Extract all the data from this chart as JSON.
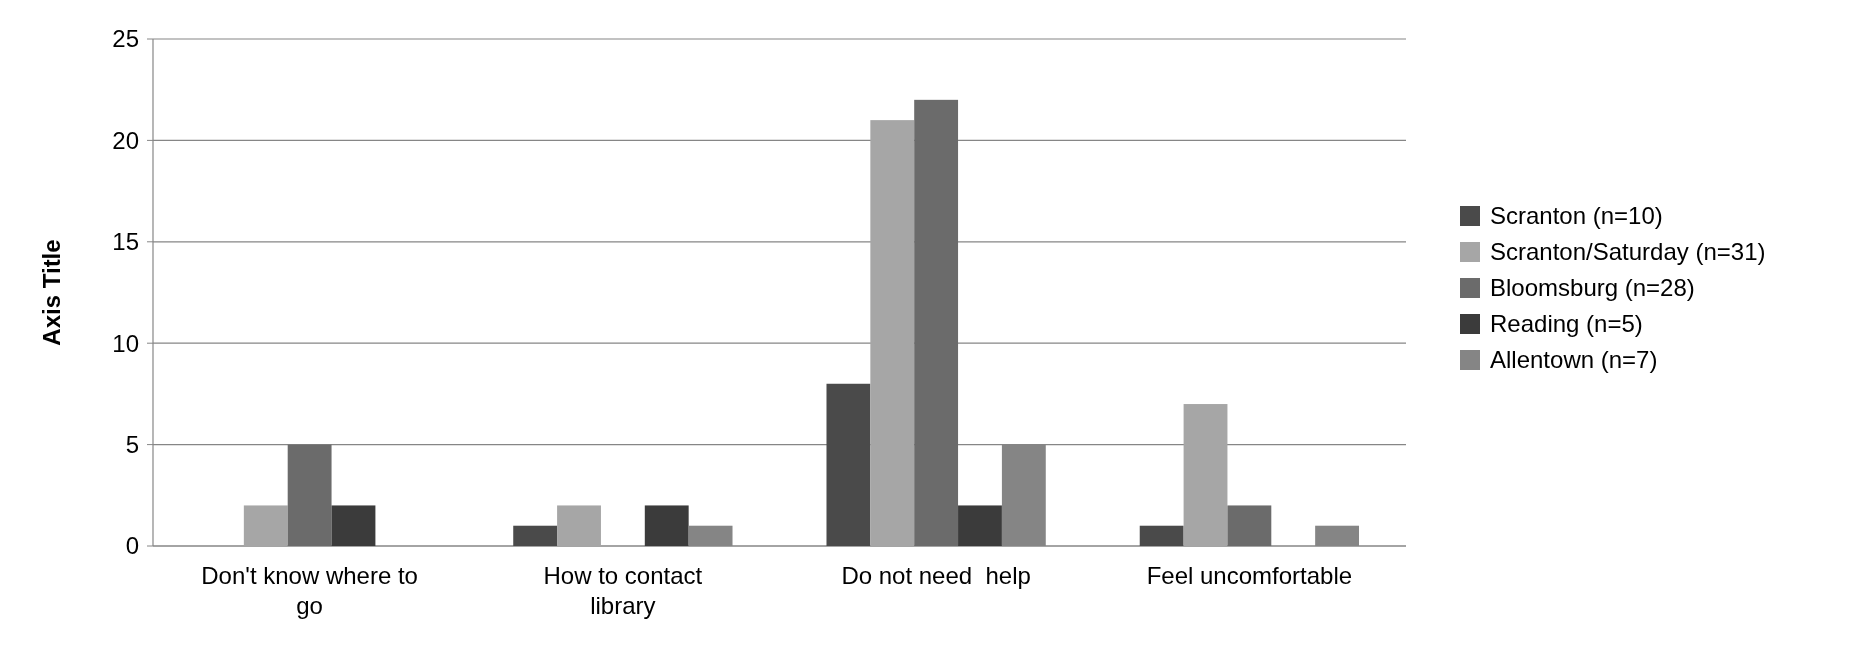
{
  "chart_data": {
    "type": "bar",
    "ylabel": "Axis Title",
    "categories": [
      "Don't know where to go",
      "How to contact library",
      "Do not need  help",
      "Feel uncomfortable"
    ],
    "series": [
      {
        "name": "Scranton (n=10)",
        "color": "#4a4a4a",
        "values": [
          0,
          1,
          8,
          1
        ]
      },
      {
        "name": "Scranton/Saturday (n=31)",
        "color": "#a6a6a6",
        "values": [
          2,
          2,
          21,
          7
        ]
      },
      {
        "name": "Bloomsburg (n=28)",
        "color": "#6b6b6b",
        "values": [
          5,
          0,
          22,
          2
        ]
      },
      {
        "name": "Reading (n=5)",
        "color": "#3b3b3b",
        "values": [
          2,
          2,
          2,
          0
        ]
      },
      {
        "name": "Allentown (n=7)",
        "color": "#858585",
        "values": [
          0,
          1,
          5,
          1
        ]
      }
    ],
    "ylim": [
      0,
      25
    ],
    "yticks": [
      0,
      5,
      10,
      15,
      20,
      25
    ],
    "grid": "y",
    "legend": "right"
  }
}
